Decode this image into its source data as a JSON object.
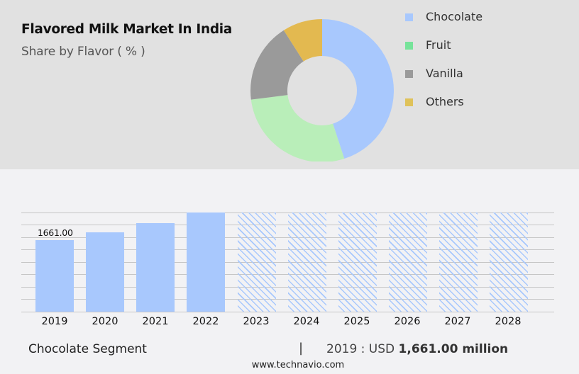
{
  "header": {
    "title": "Flavored Milk Market In India",
    "subtitle": "Share by Flavor ( % )"
  },
  "legend": [
    {
      "label": "Chocolate",
      "color": "#a8c8fd"
    },
    {
      "label": "Fruit",
      "color": "#77e39a"
    },
    {
      "label": "Vanilla",
      "color": "#9a9a9a"
    },
    {
      "label": "Others",
      "color": "#dfc25a"
    }
  ],
  "footer": {
    "segment": "Chocolate Segment",
    "separator": "|",
    "year_prefix": "2019 : USD ",
    "value_bold": "1,661.00 million",
    "url": "www.technavio.com"
  },
  "chart_data": [
    {
      "type": "pie",
      "subtype": "donut",
      "title": "Flavored Milk Market In India",
      "subtitle": "Share by Flavor ( % )",
      "categories": [
        "Chocolate",
        "Fruit",
        "Vanilla",
        "Others"
      ],
      "values": [
        45,
        28,
        18,
        9
      ],
      "colors": [
        "#a8c8fd",
        "#b9eeb9",
        "#9a9a9a",
        "#e3b950"
      ],
      "legend_position": "right"
    },
    {
      "type": "bar",
      "title": "Chocolate Segment",
      "categories": [
        "2019",
        "2020",
        "2021",
        "2022",
        "2023",
        "2024",
        "2025",
        "2026",
        "2027",
        "2028"
      ],
      "values": [
        1661.0,
        1838,
        2050,
        2300,
        null,
        null,
        null,
        null,
        null,
        null
      ],
      "forecast": [
        false,
        false,
        false,
        false,
        true,
        true,
        true,
        true,
        true,
        true
      ],
      "data_labels": {
        "2019": "1661.00"
      },
      "bar_color": "#a8c8fd",
      "forecast_style": "diagonal-hatch",
      "grid": true,
      "xlabel": "",
      "ylabel": "",
      "ylim": [
        0,
        2300
      ]
    }
  ]
}
